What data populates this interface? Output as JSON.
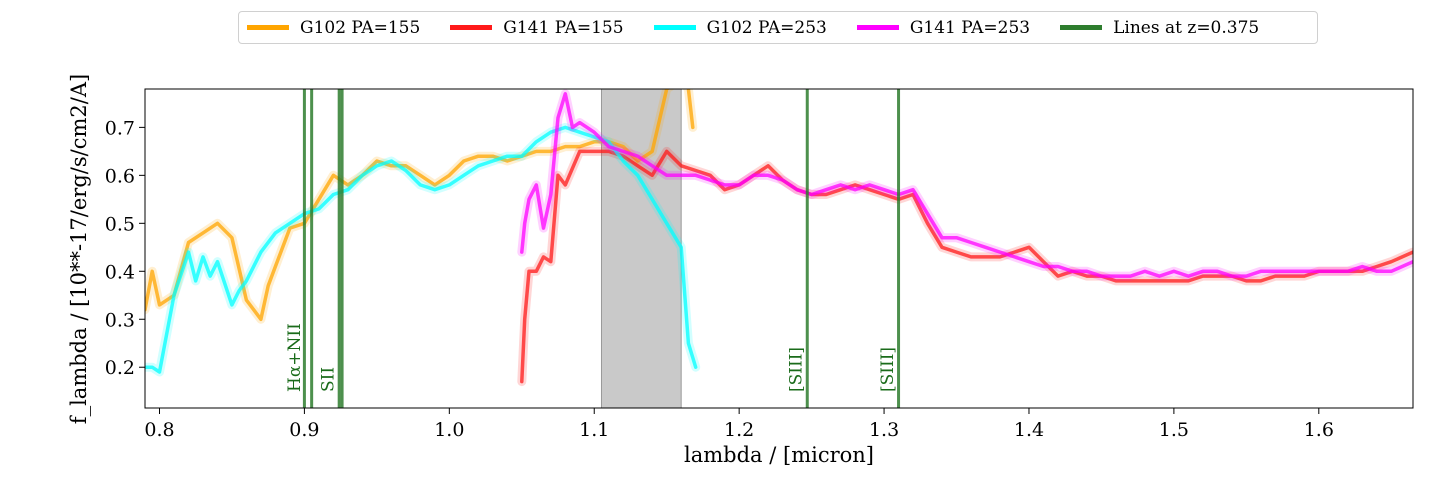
{
  "chart_data": {
    "type": "line",
    "xlabel": "lambda / [micron]",
    "ylabel": "f_lambda / [10**-17/erg/s/cm2/A]",
    "xlim": [
      0.79,
      1.665
    ],
    "ylim": [
      0.115,
      0.78
    ],
    "xticks": [
      0.8,
      0.9,
      1.0,
      1.1,
      1.2,
      1.3,
      1.4,
      1.5,
      1.6
    ],
    "xtick_labels": [
      "0.8",
      "0.9",
      "1.0",
      "1.1",
      "1.2",
      "1.3",
      "1.4",
      "1.5",
      "1.6"
    ],
    "yticks": [
      0.2,
      0.3,
      0.4,
      0.5,
      0.6,
      0.7
    ],
    "ytick_labels": [
      "0.2",
      "0.3",
      "0.4",
      "0.5",
      "0.6",
      "0.7"
    ],
    "legend": {
      "placement": "top-center, above axes"
    },
    "shaded_region": {
      "x": [
        1.105,
        1.16
      ],
      "color": "#c9c9c9"
    },
    "emission_lines": {
      "z": 0.375,
      "color": "#2e7d2e",
      "x": [
        0.9,
        0.905,
        0.924,
        0.926,
        1.247,
        1.31
      ],
      "labels": [
        {
          "text": "Hα+NII",
          "x": 0.897
        },
        {
          "text": "SII",
          "x": 0.92
        },
        {
          "text": "[SIII]",
          "x": 1.243
        },
        {
          "text": "[SIII]",
          "x": 1.306
        }
      ]
    },
    "series": [
      {
        "name": "G102 PA=155",
        "color": "#ffa500",
        "x": [
          0.79,
          0.795,
          0.8,
          0.81,
          0.82,
          0.83,
          0.84,
          0.85,
          0.86,
          0.87,
          0.875,
          0.88,
          0.89,
          0.9,
          0.91,
          0.92,
          0.93,
          0.94,
          0.95,
          0.96,
          0.97,
          0.98,
          0.99,
          1.0,
          1.01,
          1.02,
          1.03,
          1.04,
          1.05,
          1.06,
          1.07,
          1.08,
          1.09,
          1.1,
          1.11,
          1.12,
          1.13,
          1.14,
          1.15,
          1.16,
          1.165,
          1.168
        ],
        "y": [
          0.32,
          0.4,
          0.33,
          0.35,
          0.46,
          0.48,
          0.5,
          0.47,
          0.34,
          0.3,
          0.37,
          0.41,
          0.49,
          0.5,
          0.55,
          0.6,
          0.58,
          0.6,
          0.63,
          0.62,
          0.62,
          0.6,
          0.58,
          0.6,
          0.63,
          0.64,
          0.64,
          0.63,
          0.64,
          0.65,
          0.65,
          0.66,
          0.66,
          0.67,
          0.67,
          0.66,
          0.63,
          0.65,
          0.78,
          0.8,
          0.78,
          0.7
        ]
      },
      {
        "name": "G141 PA=155",
        "color": "#ff1a1a",
        "x": [
          1.05,
          1.052,
          1.055,
          1.06,
          1.065,
          1.07,
          1.075,
          1.08,
          1.09,
          1.1,
          1.11,
          1.12,
          1.13,
          1.14,
          1.15,
          1.16,
          1.17,
          1.18,
          1.19,
          1.2,
          1.21,
          1.22,
          1.23,
          1.24,
          1.25,
          1.26,
          1.27,
          1.28,
          1.29,
          1.3,
          1.31,
          1.32,
          1.33,
          1.34,
          1.35,
          1.36,
          1.37,
          1.38,
          1.39,
          1.4,
          1.41,
          1.42,
          1.43,
          1.44,
          1.45,
          1.46,
          1.47,
          1.48,
          1.49,
          1.5,
          1.51,
          1.52,
          1.53,
          1.54,
          1.55,
          1.56,
          1.57,
          1.58,
          1.59,
          1.6,
          1.61,
          1.62,
          1.63,
          1.64,
          1.65,
          1.665
        ],
        "y": [
          0.17,
          0.3,
          0.4,
          0.4,
          0.43,
          0.42,
          0.6,
          0.58,
          0.65,
          0.65,
          0.65,
          0.64,
          0.62,
          0.6,
          0.65,
          0.62,
          0.61,
          0.6,
          0.57,
          0.58,
          0.6,
          0.62,
          0.59,
          0.57,
          0.56,
          0.56,
          0.57,
          0.58,
          0.57,
          0.56,
          0.55,
          0.56,
          0.5,
          0.45,
          0.44,
          0.43,
          0.43,
          0.43,
          0.44,
          0.45,
          0.42,
          0.39,
          0.4,
          0.39,
          0.39,
          0.38,
          0.38,
          0.38,
          0.38,
          0.38,
          0.38,
          0.39,
          0.39,
          0.39,
          0.38,
          0.38,
          0.39,
          0.39,
          0.39,
          0.4,
          0.4,
          0.4,
          0.4,
          0.41,
          0.42,
          0.44
        ]
      },
      {
        "name": "G102 PA=253",
        "color": "#00ffff",
        "x": [
          0.79,
          0.795,
          0.8,
          0.81,
          0.82,
          0.825,
          0.83,
          0.835,
          0.84,
          0.85,
          0.855,
          0.86,
          0.87,
          0.88,
          0.89,
          0.9,
          0.91,
          0.92,
          0.93,
          0.94,
          0.95,
          0.96,
          0.97,
          0.98,
          0.99,
          1.0,
          1.01,
          1.02,
          1.03,
          1.04,
          1.05,
          1.06,
          1.07,
          1.08,
          1.09,
          1.1,
          1.11,
          1.12,
          1.13,
          1.14,
          1.15,
          1.16,
          1.165,
          1.17
        ],
        "y": [
          0.2,
          0.2,
          0.19,
          0.35,
          0.44,
          0.38,
          0.43,
          0.39,
          0.42,
          0.33,
          0.36,
          0.38,
          0.44,
          0.48,
          0.5,
          0.52,
          0.53,
          0.56,
          0.57,
          0.6,
          0.62,
          0.63,
          0.61,
          0.58,
          0.57,
          0.58,
          0.6,
          0.62,
          0.63,
          0.64,
          0.64,
          0.67,
          0.69,
          0.7,
          0.69,
          0.68,
          0.67,
          0.63,
          0.6,
          0.55,
          0.5,
          0.45,
          0.25,
          0.2
        ]
      },
      {
        "name": "G141 PA=253",
        "color": "#ff00ff",
        "x": [
          1.05,
          1.052,
          1.055,
          1.06,
          1.065,
          1.07,
          1.075,
          1.08,
          1.085,
          1.09,
          1.1,
          1.11,
          1.12,
          1.13,
          1.14,
          1.15,
          1.16,
          1.17,
          1.18,
          1.19,
          1.2,
          1.21,
          1.22,
          1.23,
          1.24,
          1.25,
          1.26,
          1.27,
          1.28,
          1.29,
          1.3,
          1.31,
          1.32,
          1.33,
          1.34,
          1.35,
          1.36,
          1.37,
          1.38,
          1.39,
          1.4,
          1.41,
          1.42,
          1.43,
          1.44,
          1.45,
          1.46,
          1.47,
          1.48,
          1.49,
          1.5,
          1.51,
          1.52,
          1.53,
          1.54,
          1.55,
          1.56,
          1.57,
          1.58,
          1.59,
          1.6,
          1.61,
          1.62,
          1.63,
          1.64,
          1.65,
          1.665
        ],
        "y": [
          0.44,
          0.5,
          0.55,
          0.58,
          0.49,
          0.56,
          0.72,
          0.77,
          0.7,
          0.71,
          0.69,
          0.66,
          0.65,
          0.64,
          0.62,
          0.6,
          0.6,
          0.6,
          0.59,
          0.58,
          0.58,
          0.6,
          0.6,
          0.59,
          0.57,
          0.56,
          0.57,
          0.58,
          0.57,
          0.58,
          0.57,
          0.56,
          0.57,
          0.52,
          0.47,
          0.47,
          0.46,
          0.45,
          0.44,
          0.43,
          0.42,
          0.41,
          0.41,
          0.4,
          0.4,
          0.39,
          0.39,
          0.39,
          0.4,
          0.39,
          0.4,
          0.39,
          0.4,
          0.4,
          0.39,
          0.39,
          0.4,
          0.4,
          0.4,
          0.4,
          0.4,
          0.4,
          0.4,
          0.41,
          0.4,
          0.4,
          0.42
        ]
      }
    ],
    "legend_entries": [
      {
        "label": "G102 PA=155",
        "color": "#ffa500"
      },
      {
        "label": "G141 PA=155",
        "color": "#ff1a1a"
      },
      {
        "label": "G102 PA=253",
        "color": "#00ffff"
      },
      {
        "label": "G141 PA=253",
        "color": "#ff00ff"
      },
      {
        "label": "Lines at z=0.375",
        "color": "#2e7d2e"
      }
    ]
  }
}
